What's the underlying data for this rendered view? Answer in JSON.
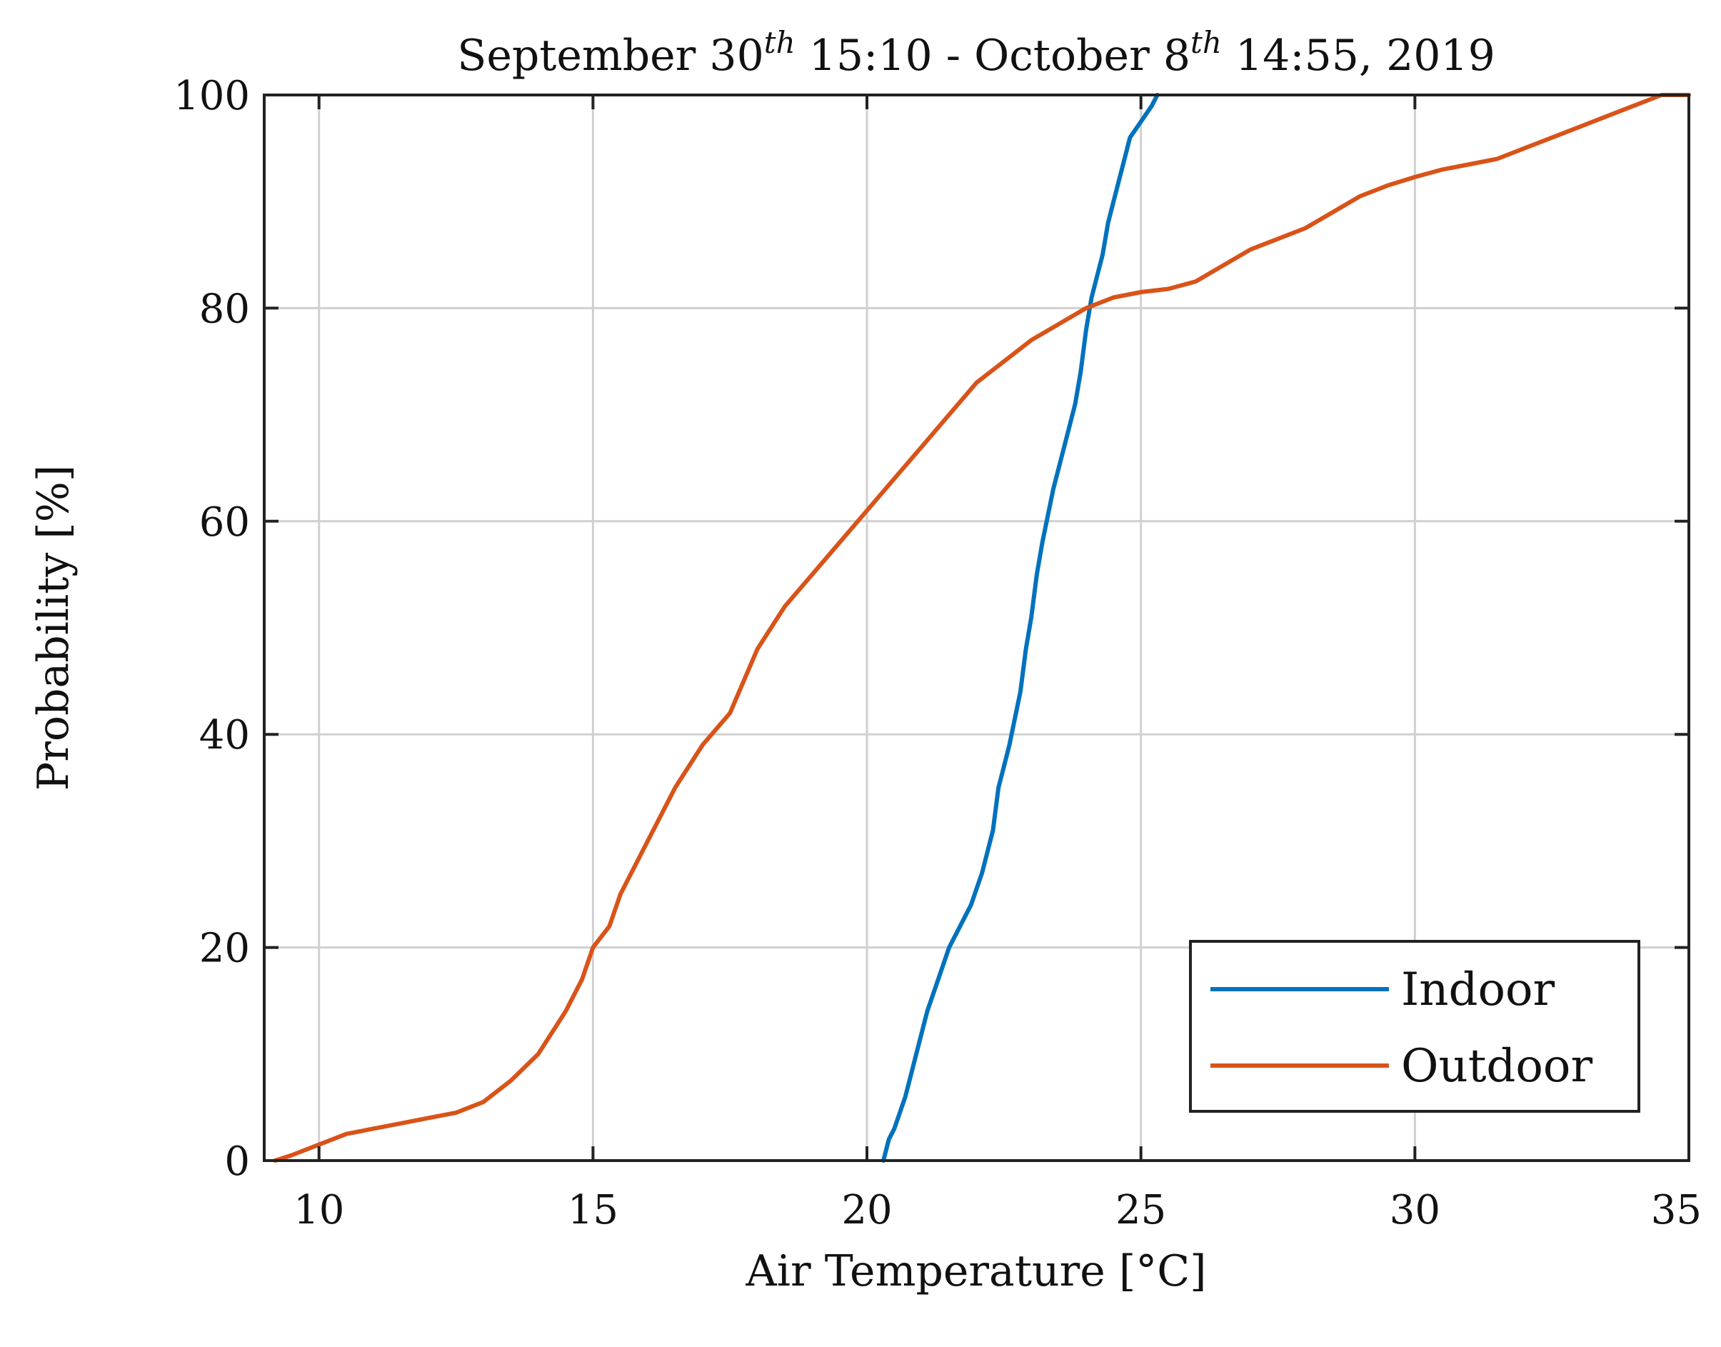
{
  "chart_data": {
    "type": "line",
    "title_main": "September 30",
    "title_sup1": "th",
    "title_mid": " 15:10 - October 8",
    "title_sup2": "th",
    "title_end": " 14:55, 2019",
    "xlabel": "Air Temperature [°C]",
    "ylabel": "Probability [%]",
    "xlim": [
      9,
      35
    ],
    "ylim": [
      0,
      100
    ],
    "xticks": [
      10,
      15,
      20,
      25,
      30,
      35
    ],
    "yticks": [
      0,
      20,
      40,
      60,
      80,
      100
    ],
    "grid": true,
    "legend_position": "bottom-right",
    "series": [
      {
        "name": "Indoor",
        "color": "#0072BD",
        "x": [
          20.3,
          20.4,
          20.5,
          20.7,
          20.9,
          21.1,
          21.3,
          21.5,
          21.7,
          21.9,
          22.1,
          22.3,
          22.4,
          22.5,
          22.6,
          22.8,
          22.9,
          23.0,
          23.1,
          23.2,
          23.4,
          23.6,
          23.8,
          23.9,
          24.0,
          24.1,
          24.2,
          24.3,
          24.4,
          24.5,
          24.6,
          24.7,
          24.8,
          25.0,
          25.2,
          25.3
        ],
        "y": [
          0,
          2,
          3,
          6,
          10,
          14,
          17,
          20,
          22,
          24,
          27,
          31,
          35,
          37,
          39,
          44,
          48,
          51,
          55,
          58,
          63,
          67,
          71,
          74,
          78,
          81,
          83,
          85,
          88,
          90,
          92,
          94,
          96,
          97.5,
          99,
          100
        ]
      },
      {
        "name": "Outdoor",
        "color": "#D95319",
        "x": [
          9.2,
          9.5,
          10.0,
          10.5,
          11.0,
          11.5,
          12.0,
          12.5,
          13.0,
          13.5,
          14.0,
          14.5,
          14.8,
          15.0,
          15.3,
          15.5,
          16.0,
          16.5,
          17.0,
          17.5,
          18.0,
          18.5,
          19.0,
          19.5,
          20.0,
          20.5,
          21.0,
          21.5,
          22.0,
          22.5,
          23.0,
          23.5,
          24.0,
          24.5,
          25.0,
          25.5,
          26.0,
          26.5,
          27.0,
          27.5,
          28.0,
          28.5,
          29.0,
          29.5,
          30.0,
          30.5,
          31.0,
          31.5,
          32.0,
          32.5,
          33.0,
          33.5,
          34.0,
          34.5,
          35.0
        ],
        "y": [
          0,
          0.5,
          1.5,
          2.5,
          3.0,
          3.5,
          4.0,
          4.5,
          5.5,
          7.5,
          10,
          14,
          17,
          20,
          22,
          25,
          30,
          35,
          39,
          42,
          48,
          52,
          55,
          58,
          61,
          64,
          67,
          70,
          73,
          75,
          77,
          78.5,
          80,
          81,
          81.5,
          81.8,
          82.5,
          84,
          85.5,
          86.5,
          87.5,
          89,
          90.5,
          91.5,
          92.3,
          93,
          93.5,
          94,
          95,
          96,
          97,
          98,
          99,
          100,
          100
        ]
      }
    ]
  }
}
